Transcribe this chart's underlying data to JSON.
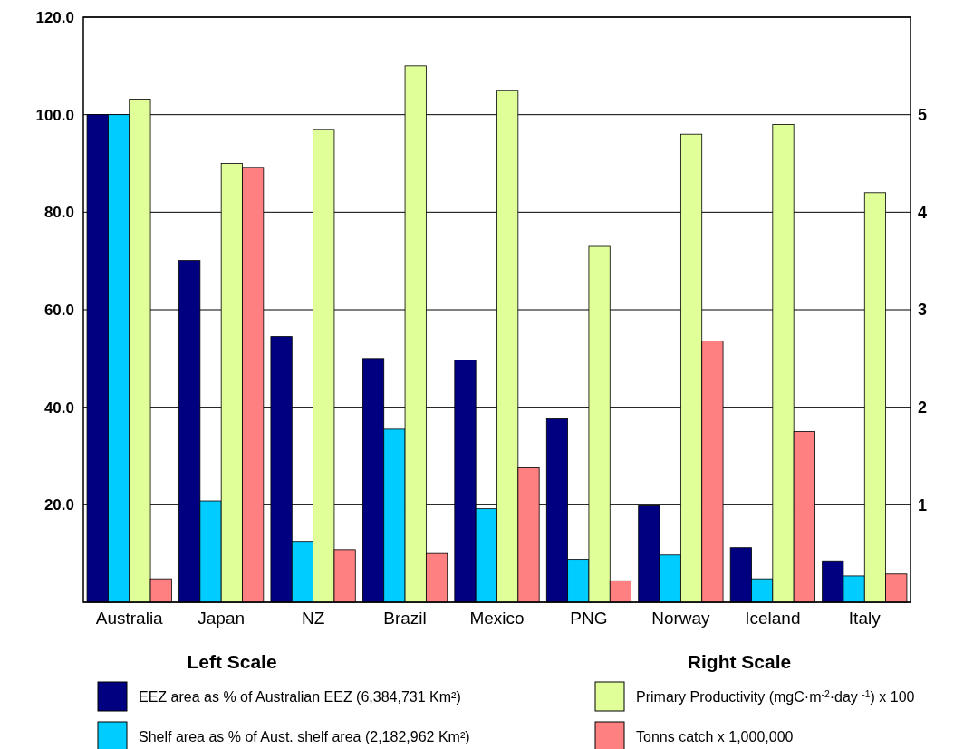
{
  "chart_data": {
    "type": "bar",
    "categories": [
      "Australia",
      "Japan",
      "NZ",
      "Brazil",
      "Mexico",
      "PNG",
      "Norway",
      "Iceland",
      "Italy"
    ],
    "series": [
      {
        "name": "EEZ area as % of Australian EEZ (6,384,731 Km²)",
        "color": "#000080",
        "values": [
          100,
          70.1,
          54.5,
          50,
          49.7,
          37.6,
          19.8,
          11.2,
          8.5
        ]
      },
      {
        "name": "Shelf area as % of Aust. shelf area (2,182,962 Km²)",
        "color": "#00ccff",
        "values": [
          100,
          20.8,
          12.5,
          35.5,
          19.2,
          8.8,
          9.7,
          4.8,
          5.4
        ]
      },
      {
        "name": "Primary Productivity (mgC·m$^{-2}$·day $^{-1}$) x 100",
        "color": "#e0ff99",
        "axis": "y2",
        "values": [
          5.16,
          4.5,
          4.85,
          5.5,
          5.25,
          3.65,
          4.8,
          4.9,
          4.2
        ]
      },
      {
        "name": "Tonns catch x 1,000,000",
        "color": "#ff8080",
        "axis": "y2",
        "values": [
          0.24,
          4.46,
          0.54,
          0.5,
          1.38,
          0.22,
          2.68,
          1.75,
          0.29
        ]
      }
    ],
    "ylim": [
      0,
      120
    ],
    "yticks": [
      {
        "value": 0,
        "label": null
      },
      {
        "value": 20,
        "label": "20.0"
      },
      {
        "value": 40,
        "label": "40.0"
      },
      {
        "value": 60,
        "label": "60.0"
      },
      {
        "value": 80,
        "label": "80.0"
      },
      {
        "value": 100,
        "label": "100.0"
      },
      {
        "value": 120,
        "label": "120.0"
      }
    ],
    "y2lim": [
      0,
      6
    ],
    "y2ticks": [
      1,
      2,
      3,
      4,
      5
    ],
    "grid": "y",
    "legend": "bottom",
    "annotations": [
      "Left Scale",
      "Right Scale"
    ]
  }
}
